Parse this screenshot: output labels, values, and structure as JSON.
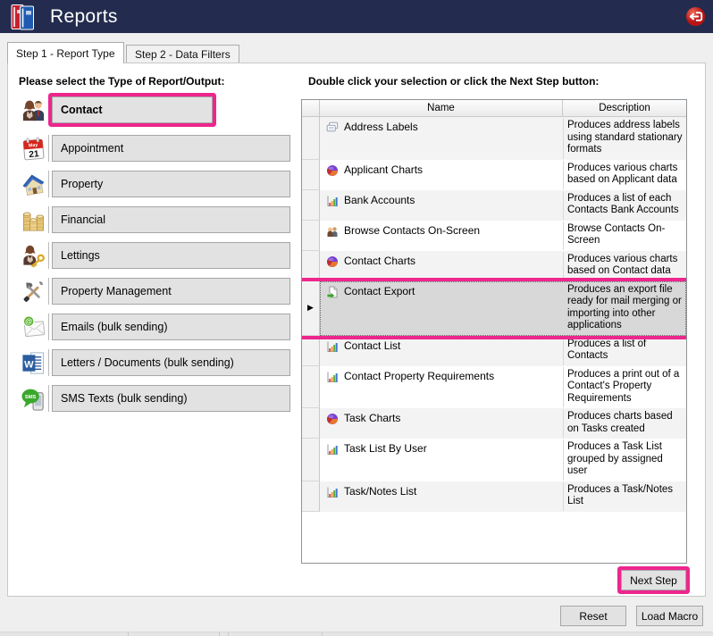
{
  "window": {
    "title": "Reports",
    "app_icon": "binders-icon",
    "exit_icon": "exit-icon"
  },
  "colors": {
    "titlebar": "#232c4e",
    "highlight": "#ed268e"
  },
  "tabs": {
    "tab1": "Step 1 - Report Type",
    "tab2": "Step 2 - Data Filters"
  },
  "left_panel": {
    "heading": "Please select the Type of Report/Output:",
    "items": [
      {
        "label": "Contact",
        "icon": "contact-icon",
        "highlighted": true
      },
      {
        "label": "Appointment",
        "icon": "appointment-icon",
        "highlighted": false
      },
      {
        "label": "Property",
        "icon": "property-icon",
        "highlighted": false
      },
      {
        "label": "Financial",
        "icon": "financial-icon",
        "highlighted": false
      },
      {
        "label": "Lettings",
        "icon": "lettings-icon",
        "highlighted": false
      },
      {
        "label": "Property Management",
        "icon": "property-management-icon",
        "highlighted": false
      },
      {
        "label": "Emails (bulk sending)",
        "icon": "email-icon",
        "highlighted": false
      },
      {
        "label": "Letters / Documents (bulk sending)",
        "icon": "word-document-icon",
        "highlighted": false
      },
      {
        "label": "SMS Texts (bulk sending)",
        "icon": "sms-icon",
        "highlighted": false
      }
    ]
  },
  "right_panel": {
    "heading": "Double click your selection or click the Next Step button:",
    "table": {
      "columns": {
        "name": "Name",
        "description": "Description"
      },
      "rows": [
        {
          "name": "Address Labels",
          "icon": "labels-icon",
          "description": "Produces address labels using standard stationary formats",
          "selected": false
        },
        {
          "name": "Applicant Charts",
          "icon": "pie-chart-icon",
          "description": "Produces various charts based on Applicant data",
          "selected": false
        },
        {
          "name": "Bank Accounts",
          "icon": "bar-chart-icon",
          "description": "Produces a list of each Contacts Bank Accounts",
          "selected": false
        },
        {
          "name": "Browse Contacts On-Screen",
          "icon": "people-icon",
          "description": "Browse Contacts On-Screen",
          "selected": false
        },
        {
          "name": "Contact Charts",
          "icon": "pie-chart-icon",
          "description": "Produces various charts based on Contact data",
          "selected": false
        },
        {
          "name": "Contact Export",
          "icon": "export-file-icon",
          "description": "Produces an export file ready for mail merging or importing into other applications",
          "selected": true
        },
        {
          "name": "Contact List",
          "icon": "bar-chart-icon",
          "description": "Produces a list of Contacts",
          "selected": false
        },
        {
          "name": "Contact Property Requirements",
          "icon": "bar-chart-icon",
          "description": "Produces a print out of a Contact's Property Requirements",
          "selected": false
        },
        {
          "name": "Task Charts",
          "icon": "pie-chart-icon",
          "description": "Produces charts based on Tasks created",
          "selected": false
        },
        {
          "name": "Task List By User",
          "icon": "bar-chart-icon",
          "description": "Produces a Task List grouped by assigned user",
          "selected": false
        },
        {
          "name": "Task/Notes List",
          "icon": "bar-chart-icon",
          "description": "Produces a Task/Notes List",
          "selected": false
        }
      ],
      "selected_row_marker": "▶"
    },
    "next_step_label": "Next Step"
  },
  "footer": {
    "reset_label": "Reset",
    "load_macro_label": "Load Macro"
  }
}
